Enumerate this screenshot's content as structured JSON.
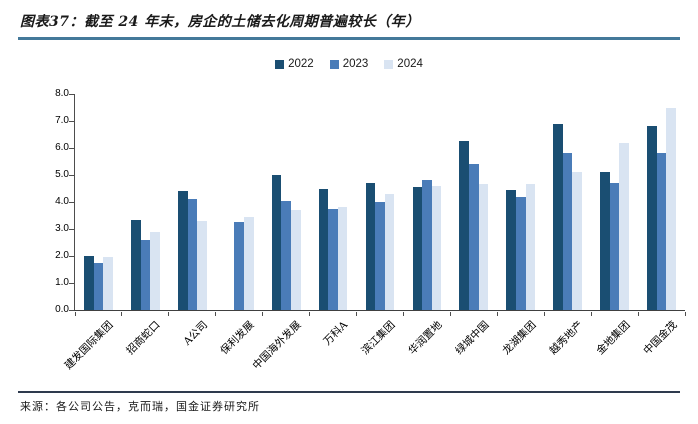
{
  "figure": {
    "title": "图表37：截至 24 年末，房企的土储去化周期普遍较长（年）",
    "source": "来源：各公司公告，克而瑞，国金证券研究所"
  },
  "colors": {
    "title_rule": "#44799a",
    "footer_rule": "#2e3a4e",
    "axis": "#4d4d4d",
    "series_2022": "#1a4e72",
    "series_2023": "#4a7cb8",
    "series_2024": "#d9e4f2"
  },
  "chart_data": {
    "type": "bar",
    "title": "截至 24 年末，房企的土储去化周期普遍较长（年）",
    "categories": [
      "建发国际集团",
      "招商蛇口",
      "A公司",
      "保利发展",
      "中国海外发展",
      "万科A",
      "滨江集团",
      "华润置地",
      "绿城中国",
      "龙湖集团",
      "越秀地产",
      "金地集团",
      "中国金茂"
    ],
    "series": [
      {
        "name": "2022",
        "color": "#1a4e72",
        "values": [
          2.0,
          3.35,
          4.4,
          null,
          5.0,
          4.5,
          4.7,
          4.55,
          6.25,
          4.45,
          6.9,
          5.1,
          6.8
        ]
      },
      {
        "name": "2023",
        "color": "#4a7cb8",
        "values": [
          1.75,
          2.6,
          4.1,
          3.25,
          4.05,
          3.75,
          4.0,
          4.8,
          5.4,
          4.2,
          5.8,
          4.7,
          5.8
        ]
      },
      {
        "name": "2024",
        "color": "#d9e4f2",
        "values": [
          1.95,
          2.9,
          3.3,
          3.45,
          3.7,
          3.8,
          4.3,
          4.6,
          4.65,
          4.65,
          5.1,
          6.2,
          7.5
        ]
      }
    ],
    "xlabel": "",
    "ylabel": "",
    "ylim": [
      0,
      8
    ],
    "ytick_step": 1.0,
    "ytick_labels": [
      "0.0",
      "1.0",
      "2.0",
      "3.0",
      "4.0",
      "5.0",
      "6.0",
      "7.0",
      "8.0"
    ],
    "legend_position": "top-center",
    "grid": false
  }
}
